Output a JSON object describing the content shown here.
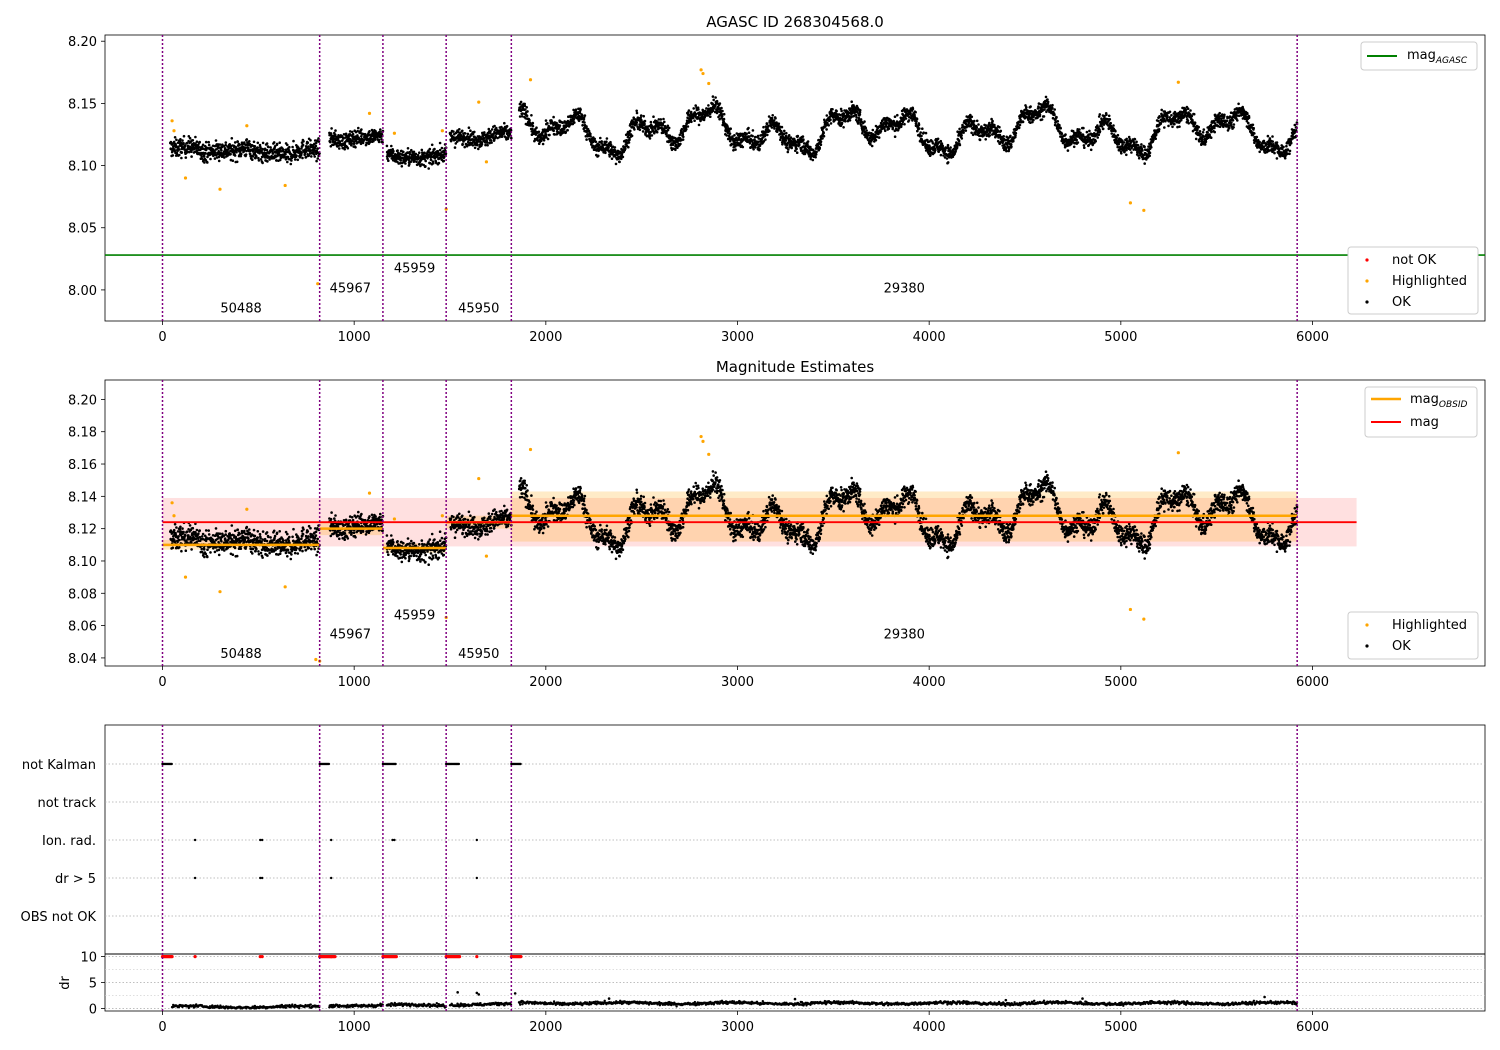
{
  "chart_data": [
    {
      "type": "scatter",
      "title": "AGASC ID 268304568.0",
      "xlim": [
        -300,
        6900
      ],
      "ylim": [
        7.975,
        8.205
      ],
      "yticks": [
        "8.00",
        "8.05",
        "8.10",
        "8.15",
        "8.20"
      ],
      "ytick_values": [
        8.0,
        8.05,
        8.1,
        8.15,
        8.2
      ],
      "xticks": [
        "0",
        "1000",
        "2000",
        "3000",
        "4000",
        "5000",
        "6000"
      ],
      "xtick_values": [
        0,
        1000,
        2000,
        3000,
        4000,
        5000,
        6000
      ],
      "obsid_boundaries": [
        0,
        820,
        1150,
        1480,
        1820,
        5920
      ],
      "obsid_labels": [
        {
          "text": "50488",
          "x": 410,
          "y": 7.986
        },
        {
          "text": "45967",
          "x": 980,
          "y": 8.002
        },
        {
          "text": "45959",
          "x": 1315,
          "y": 8.018
        },
        {
          "text": "45950",
          "x": 1650,
          "y": 7.986
        },
        {
          "text": "29380",
          "x": 3870,
          "y": 8.002
        }
      ],
      "reference_line": {
        "name": "mag_AGASC",
        "value": 8.028,
        "color": "#008000"
      },
      "legend_top": {
        "label_main": "mag",
        "label_sub": "AGASC"
      },
      "legend_bottom": [
        "not OK",
        "Highlighted",
        "OK"
      ],
      "colors": {
        "ok": "#000000",
        "highlighted": "#ffa500",
        "not_ok": "#ff0000",
        "obs_line": "#800080"
      },
      "series_ok": {
        "name": "OK",
        "segments": [
          {
            "x_start": 40,
            "x_end": 820,
            "mean": 8.112,
            "spread": 0.007,
            "wave_amp": 0.003
          },
          {
            "x_start": 870,
            "x_end": 1150,
            "mean": 8.121,
            "spread": 0.006,
            "wave_amp": 0.003
          },
          {
            "x_start": 1170,
            "x_end": 1480,
            "mean": 8.108,
            "spread": 0.006,
            "wave_amp": 0.003
          },
          {
            "x_start": 1500,
            "x_end": 1820,
            "mean": 8.124,
            "spread": 0.006,
            "wave_amp": 0.003
          },
          {
            "x_start": 1860,
            "x_end": 5920,
            "mean": 8.128,
            "spread": 0.006,
            "wave_amp": 0.017
          }
        ]
      },
      "series_highlighted": {
        "name": "Highlighted",
        "points": [
          [
            50,
            8.136
          ],
          [
            60,
            8.128
          ],
          [
            120,
            8.09
          ],
          [
            300,
            8.081
          ],
          [
            440,
            8.132
          ],
          [
            640,
            8.084
          ],
          [
            810,
            8.005
          ],
          [
            1080,
            8.142
          ],
          [
            1210,
            8.126
          ],
          [
            1460,
            8.128
          ],
          [
            1480,
            8.065
          ],
          [
            1650,
            8.151
          ],
          [
            1690,
            8.103
          ],
          [
            1920,
            8.169
          ],
          [
            2810,
            8.177
          ],
          [
            2820,
            8.174
          ],
          [
            2850,
            8.166
          ],
          [
            5050,
            8.07
          ],
          [
            5120,
            8.064
          ],
          [
            5300,
            8.167
          ]
        ]
      }
    },
    {
      "type": "scatter",
      "title": "Magnitude Estimates",
      "xlim": [
        -300,
        6900
      ],
      "ylim": [
        8.035,
        8.212
      ],
      "yticks": [
        "8.04",
        "8.06",
        "8.08",
        "8.10",
        "8.12",
        "8.14",
        "8.16",
        "8.18",
        "8.20"
      ],
      "ytick_values": [
        8.04,
        8.06,
        8.08,
        8.1,
        8.12,
        8.14,
        8.16,
        8.18,
        8.2
      ],
      "xticks": [
        "0",
        "1000",
        "2000",
        "3000",
        "4000",
        "5000",
        "6000"
      ],
      "xtick_values": [
        0,
        1000,
        2000,
        3000,
        4000,
        5000,
        6000
      ],
      "obsid_boundaries": [
        0,
        820,
        1150,
        1480,
        1820,
        5920
      ],
      "obsid_labels": [
        {
          "text": "50488",
          "x": 410,
          "y": 8.043
        },
        {
          "text": "45967",
          "x": 980,
          "y": 8.055
        },
        {
          "text": "45959",
          "x": 1315,
          "y": 8.067
        },
        {
          "text": "45950",
          "x": 1650,
          "y": 8.043
        },
        {
          "text": "29380",
          "x": 3870,
          "y": 8.055
        }
      ],
      "mag": {
        "name": "mag",
        "value": 8.124,
        "band": [
          8.109,
          8.139
        ],
        "xmax": 6230,
        "color": "#ff0000"
      },
      "mag_obsid": [
        {
          "x": [
            0,
            820
          ],
          "value": 8.11,
          "band": [
            8.107,
            8.113
          ]
        },
        {
          "x": [
            820,
            1150
          ],
          "value": 8.12,
          "band": [
            8.116,
            8.124
          ]
        },
        {
          "x": [
            1150,
            1480
          ],
          "value": 8.108,
          "band": [
            8.105,
            8.111
          ]
        },
        {
          "x": [
            1480,
            1820
          ],
          "value": 8.124,
          "band": [
            8.12,
            8.128
          ]
        },
        {
          "x": [
            1820,
            5920
          ],
          "value": 8.128,
          "band": [
            8.112,
            8.143
          ]
        }
      ],
      "legend_top": [
        {
          "label_main": "mag",
          "label_sub": "OBSID",
          "color": "#ffa500"
        },
        {
          "label_main": "mag",
          "label_sub": "",
          "color": "#ff0000"
        }
      ],
      "legend_bottom": [
        "Highlighted",
        "OK"
      ],
      "series_highlighted_extra": [
        [
          800,
          8.039
        ],
        [
          820,
          8.038
        ]
      ]
    },
    {
      "type": "scatter",
      "title": "",
      "xlim": [
        -300,
        6900
      ],
      "flag_rows": [
        "not Kalman",
        "not track",
        "Ion. rad.",
        "dr > 5",
        "OBS not OK"
      ],
      "flags": {
        "not Kalman": [
          [
            0,
            50
          ],
          [
            820,
            870
          ],
          [
            1150,
            1220
          ],
          [
            1480,
            1550
          ],
          [
            1820,
            1870
          ]
        ],
        "not track": [],
        "Ion. rad.": [
          170,
          510,
          520,
          880,
          1200,
          1210,
          1640
        ],
        "dr > 5": [
          170,
          510,
          520,
          880,
          1640
        ],
        "OBS not OK": []
      },
      "dr_axis": {
        "ylabel": "dr",
        "ylim": [
          -0.5,
          10.5
        ],
        "yticks": [
          "0",
          "5",
          "10"
        ],
        "ytick_values": [
          0,
          5,
          10
        ],
        "xticks": [
          "0",
          "1000",
          "2000",
          "3000",
          "4000",
          "5000",
          "6000"
        ],
        "xtick_values": [
          0,
          1000,
          2000,
          3000,
          4000,
          5000,
          6000
        ]
      },
      "dr_clipped": [
        [
          0,
          50
        ],
        [
          820,
          900
        ],
        [
          1150,
          1220
        ],
        [
          1480,
          1550
        ],
        [
          1820,
          1870
        ]
      ],
      "dr_clipped_single": [
        170,
        510,
        520,
        880,
        1640
      ],
      "dr_baseline": [
        {
          "x": [
            50,
            820
          ],
          "level": 0.3
        },
        {
          "x": [
            870,
            1150
          ],
          "level": 0.6
        },
        {
          "x": [
            1170,
            1480
          ],
          "level": 0.6
        },
        {
          "x": [
            1500,
            1820
          ],
          "level": 0.8
        },
        {
          "x": [
            1860,
            5920
          ],
          "level": 1.0
        }
      ],
      "dr_spikes": [
        [
          1540,
          3.1
        ],
        [
          1640,
          3.0
        ],
        [
          1650,
          2.7
        ],
        [
          1840,
          2.9
        ],
        [
          2330,
          1.9
        ],
        [
          3300,
          1.8
        ],
        [
          4400,
          1.6
        ],
        [
          4800,
          1.9
        ],
        [
          5750,
          2.2
        ]
      ]
    }
  ]
}
